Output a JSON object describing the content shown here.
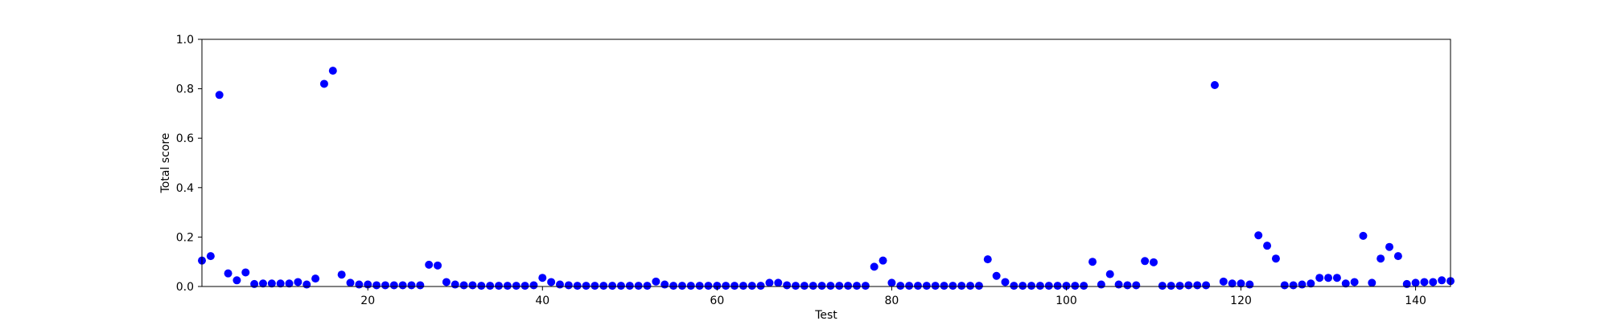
{
  "chart_data": {
    "type": "scatter",
    "xlabel": "Test",
    "ylabel": "Total score",
    "xlim": [
      1,
      144
    ],
    "ylim": [
      0,
      1.0
    ],
    "x_ticks": [
      20,
      40,
      60,
      80,
      100,
      120,
      140
    ],
    "y_ticks": [
      0.0,
      0.2,
      0.4,
      0.6,
      0.8,
      1.0
    ],
    "grid": false,
    "marker_color": "#0000ff",
    "x": [
      1,
      2,
      3,
      4,
      5,
      6,
      7,
      8,
      9,
      10,
      11,
      12,
      13,
      14,
      15,
      16,
      17,
      18,
      19,
      20,
      21,
      22,
      23,
      24,
      25,
      26,
      27,
      28,
      29,
      30,
      31,
      32,
      33,
      34,
      35,
      36,
      37,
      38,
      39,
      40,
      41,
      42,
      43,
      44,
      45,
      46,
      47,
      48,
      49,
      50,
      51,
      52,
      53,
      54,
      55,
      56,
      57,
      58,
      59,
      60,
      61,
      62,
      63,
      64,
      65,
      66,
      67,
      68,
      69,
      70,
      71,
      72,
      73,
      74,
      75,
      76,
      77,
      78,
      79,
      80,
      81,
      82,
      83,
      84,
      85,
      86,
      87,
      88,
      89,
      90,
      91,
      92,
      93,
      94,
      95,
      96,
      97,
      98,
      99,
      100,
      101,
      102,
      103,
      104,
      105,
      106,
      107,
      108,
      109,
      110,
      111,
      112,
      113,
      114,
      115,
      116,
      117,
      118,
      119,
      120,
      121,
      122,
      123,
      124,
      125,
      126,
      127,
      128,
      129,
      130,
      131,
      132,
      133,
      134,
      135,
      136,
      137,
      138,
      139,
      140,
      141,
      142,
      143,
      144
    ],
    "y": [
      0.105,
      0.123,
      0.775,
      0.053,
      0.025,
      0.057,
      0.01,
      0.012,
      0.012,
      0.012,
      0.012,
      0.018,
      0.008,
      0.032,
      0.82,
      0.873,
      0.048,
      0.015,
      0.008,
      0.008,
      0.005,
      0.005,
      0.005,
      0.005,
      0.005,
      0.005,
      0.088,
      0.085,
      0.018,
      0.008,
      0.005,
      0.005,
      0.003,
      0.003,
      0.003,
      0.003,
      0.003,
      0.003,
      0.005,
      0.035,
      0.018,
      0.008,
      0.005,
      0.003,
      0.003,
      0.003,
      0.003,
      0.003,
      0.003,
      0.003,
      0.003,
      0.003,
      0.02,
      0.008,
      0.003,
      0.003,
      0.003,
      0.003,
      0.003,
      0.003,
      0.003,
      0.003,
      0.003,
      0.003,
      0.003,
      0.015,
      0.015,
      0.005,
      0.003,
      0.003,
      0.003,
      0.003,
      0.003,
      0.003,
      0.003,
      0.003,
      0.003,
      0.08,
      0.105,
      0.015,
      0.003,
      0.003,
      0.003,
      0.003,
      0.003,
      0.003,
      0.003,
      0.003,
      0.003,
      0.003,
      0.11,
      0.043,
      0.018,
      0.003,
      0.003,
      0.003,
      0.003,
      0.003,
      0.003,
      0.003,
      0.003,
      0.003,
      0.1,
      0.008,
      0.05,
      0.008,
      0.005,
      0.005,
      0.103,
      0.098,
      0.003,
      0.003,
      0.003,
      0.005,
      0.005,
      0.005,
      0.815,
      0.02,
      0.012,
      0.012,
      0.008,
      0.207,
      0.165,
      0.113,
      0.005,
      0.005,
      0.008,
      0.012,
      0.035,
      0.035,
      0.035,
      0.012,
      0.018,
      0.205,
      0.015,
      0.113,
      0.16,
      0.123,
      0.01,
      0.015,
      0.018,
      0.018,
      0.025,
      0.022
    ]
  }
}
